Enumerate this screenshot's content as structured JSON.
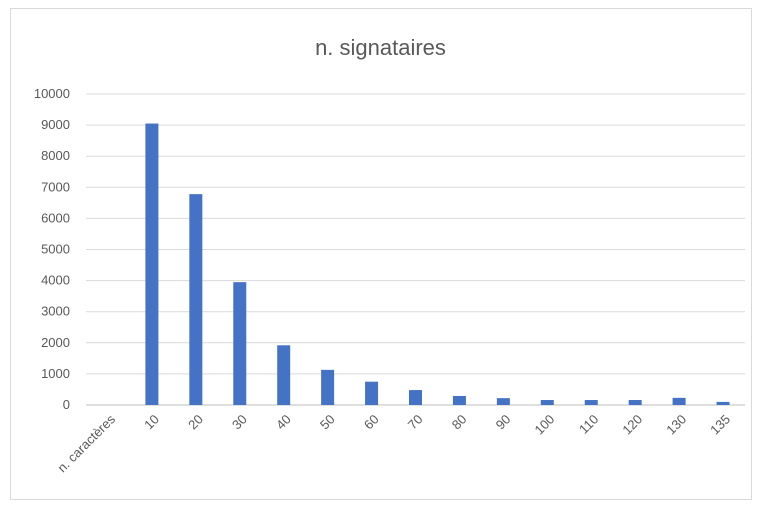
{
  "chart_data": {
    "type": "bar",
    "title": "n. signataires",
    "categories": [
      "n. caractères",
      "10",
      "20",
      "30",
      "40",
      "50",
      "60",
      "70",
      "80",
      "90",
      "100",
      "110",
      "120",
      "130",
      "135"
    ],
    "series": [
      {
        "values": [
          0,
          9050,
          6780,
          3950,
          1920,
          1130,
          750,
          480,
          290,
          220,
          160,
          160,
          160,
          230,
          100
        ]
      }
    ],
    "ylim": [
      0,
      10000
    ],
    "yticks": [
      0,
      1000,
      2000,
      3000,
      4000,
      5000,
      6000,
      7000,
      8000,
      9000,
      10000
    ],
    "grid": true,
    "bar_color": "#4472c4"
  }
}
